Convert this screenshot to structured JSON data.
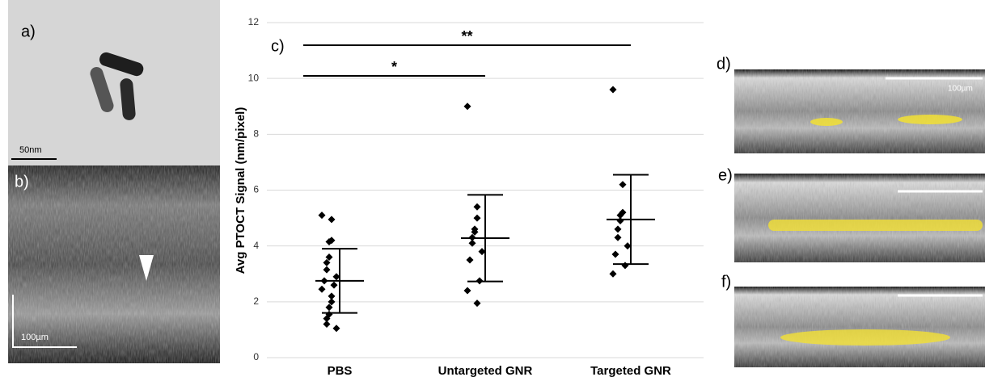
{
  "panels": {
    "a_label": "a)",
    "a_scale": "50nm",
    "b_label": "b)",
    "b_scale": "100µm",
    "d_label": "d)",
    "d_scale": "100µm",
    "e_label": "e)",
    "f_label": "f)"
  },
  "chart_data": {
    "type": "dot",
    "panel_label": "c)",
    "y_label": "Avg PTOCT Signal (nm/pixel)",
    "categories": [
      "PBS",
      "Untargeted GNR",
      "Targeted GNR"
    ],
    "points": [
      [
        5.1,
        4.95,
        4.2,
        4.15,
        3.6,
        3.4,
        3.15,
        2.9,
        2.75,
        2.6,
        2.45,
        2.2,
        2.0,
        1.8,
        1.55,
        1.4,
        1.2,
        1.05
      ],
      [
        9.0,
        5.4,
        5.0,
        4.6,
        4.5,
        4.3,
        4.1,
        3.8,
        3.5,
        2.75,
        2.4,
        1.95
      ],
      [
        9.6,
        6.2,
        5.2,
        5.1,
        4.9,
        4.6,
        4.3,
        4.0,
        3.7,
        3.3,
        3.0
      ]
    ],
    "means": [
      2.75,
      4.28,
      4.95
    ],
    "errors": [
      1.15,
      1.55,
      1.6
    ],
    "color": "#000000",
    "significance": [
      {
        "text": "*",
        "from": "PBS",
        "to": "Untargeted GNR"
      },
      {
        "text": "**",
        "from": "PBS",
        "to": "Targeted GNR"
      }
    ],
    "ylim": [
      0,
      12
    ],
    "yticks": [
      0,
      2,
      4,
      6,
      8,
      10,
      12
    ],
    "grid": true
  }
}
